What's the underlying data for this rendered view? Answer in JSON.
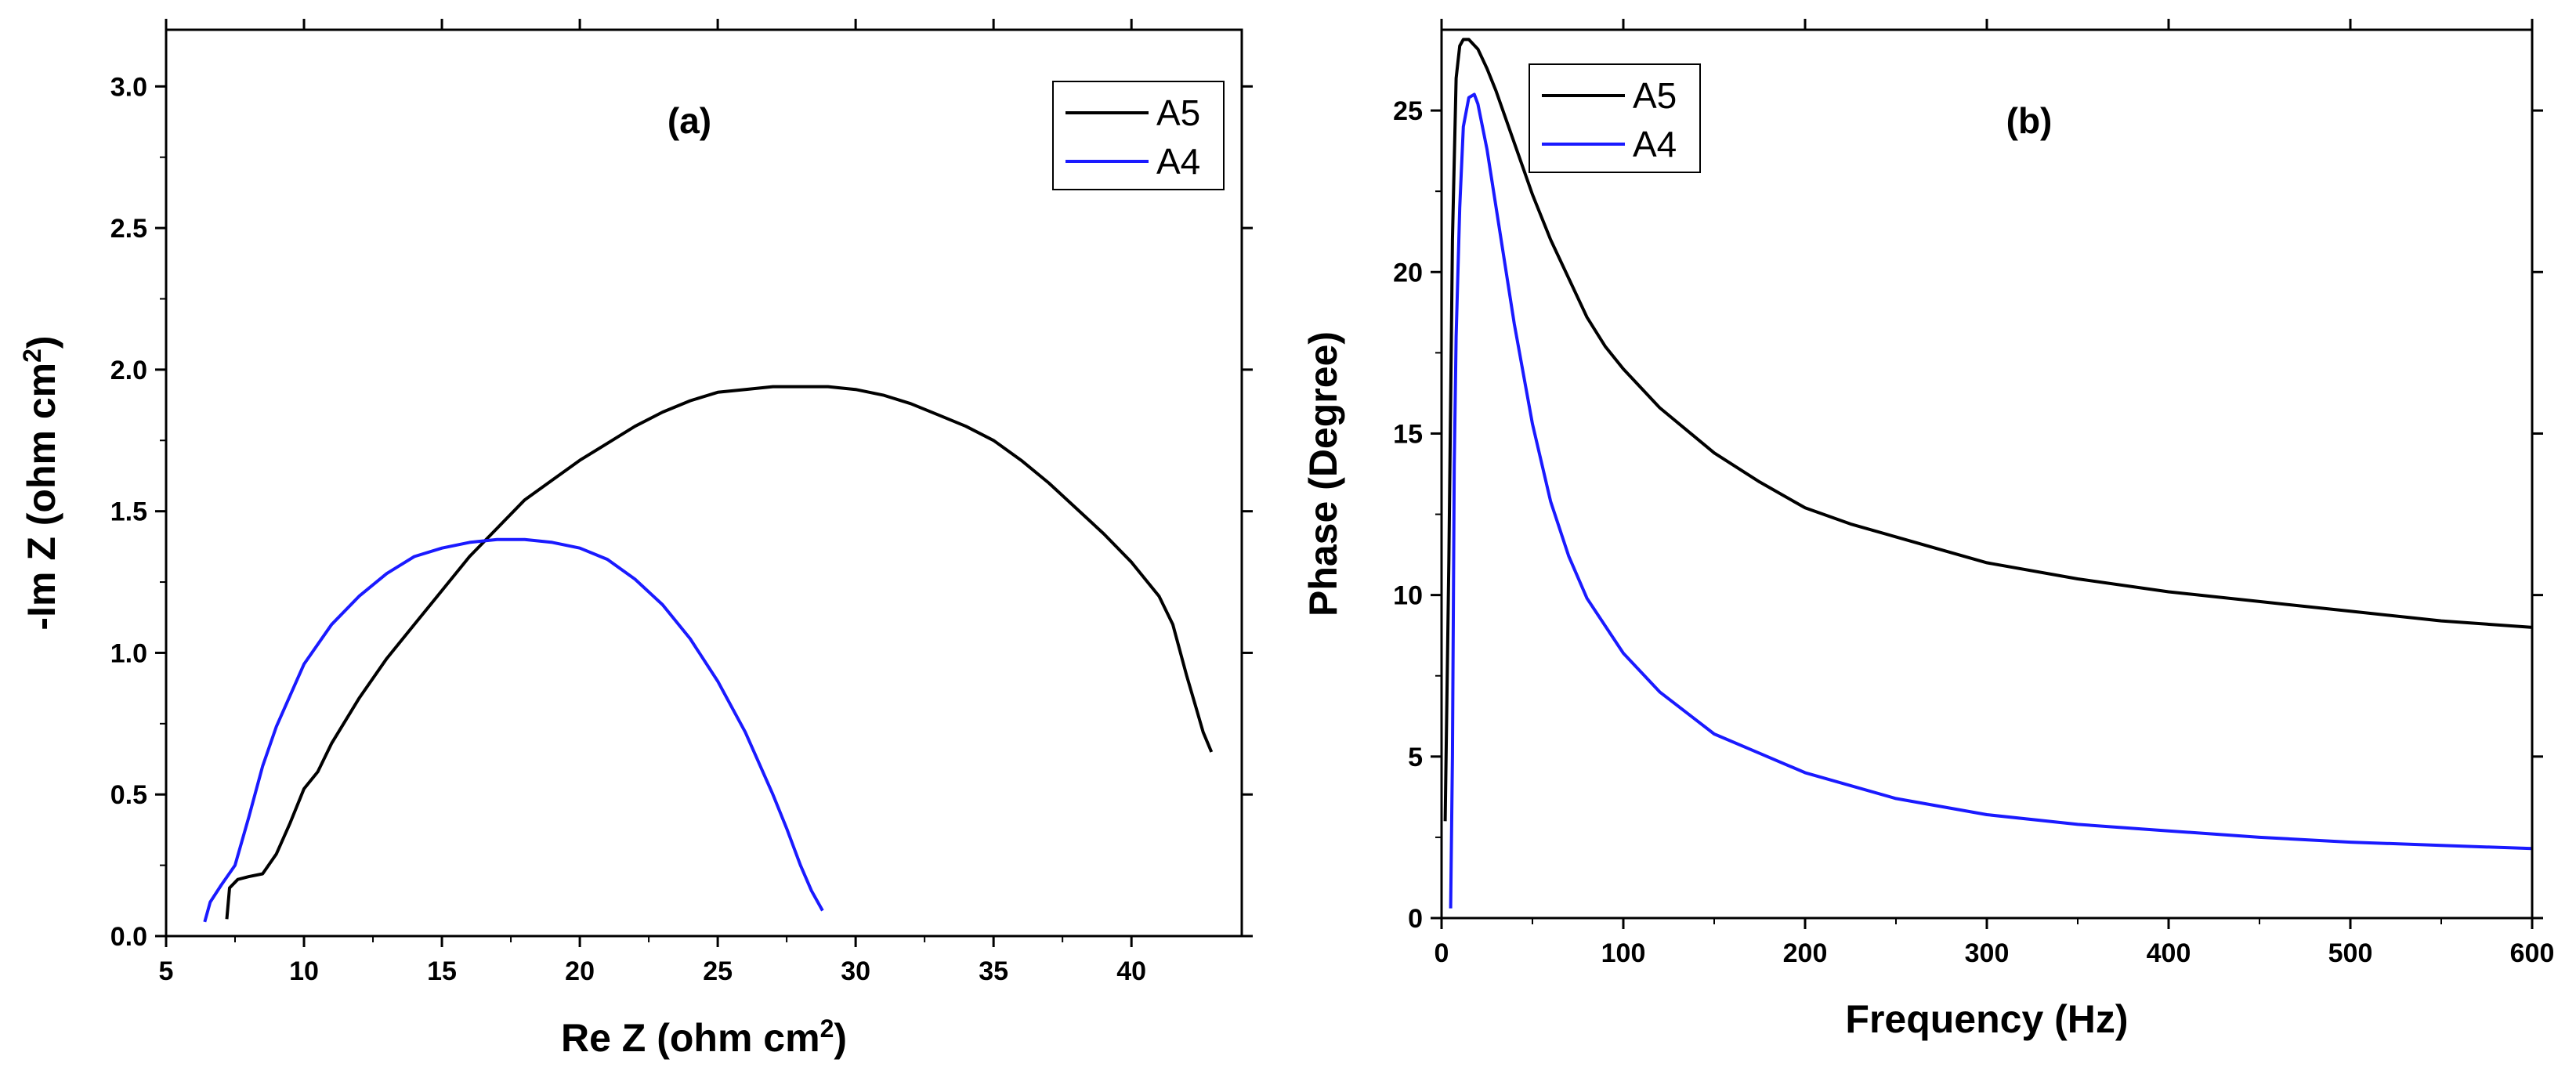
{
  "chart_data": [
    {
      "type": "line",
      "panel_label": "(a)",
      "xlabel": "Re Z (ohm cm",
      "xlabel_sup": "2",
      "xlabel_end": ")",
      "ylabel": "-Im Z (ohm cm",
      "ylabel_sup": "2",
      "ylabel_end": ")",
      "xlim": [
        5,
        44
      ],
      "ylim": [
        0,
        3.2
      ],
      "xticks": [
        5,
        10,
        15,
        20,
        25,
        30,
        35,
        40
      ],
      "xtick_labels": [
        "5",
        "10",
        "15",
        "20",
        "25",
        "30",
        "35",
        "40"
      ],
      "yticks": [
        0,
        0.5,
        1.0,
        1.5,
        2.0,
        2.5,
        3.0
      ],
      "ytick_labels": [
        "0.0",
        "0.5",
        "1.0",
        "1.5",
        "2.0",
        "2.5",
        "3.0"
      ],
      "legend": "top-right",
      "series": [
        {
          "name": "A5",
          "color": "#000000",
          "x": [
            7.2,
            7.3,
            7.6,
            8.0,
            8.5,
            9.0,
            9.5,
            10.0,
            10.5,
            11.0,
            12.0,
            13.0,
            14.0,
            15.0,
            16.0,
            17.0,
            18.0,
            19.0,
            20.0,
            21.0,
            22.0,
            23.0,
            24.0,
            25.0,
            26.0,
            27.0,
            28.0,
            29.0,
            30.0,
            31.0,
            32.0,
            33.0,
            34.0,
            35.0,
            36.0,
            37.0,
            38.0,
            39.0,
            40.0,
            41.0,
            41.5,
            42.0,
            42.3,
            42.6,
            42.9
          ],
          "y": [
            0.06,
            0.17,
            0.2,
            0.21,
            0.22,
            0.29,
            0.4,
            0.52,
            0.58,
            0.68,
            0.84,
            0.98,
            1.1,
            1.22,
            1.34,
            1.44,
            1.54,
            1.61,
            1.68,
            1.74,
            1.8,
            1.85,
            1.89,
            1.92,
            1.93,
            1.94,
            1.94,
            1.94,
            1.93,
            1.91,
            1.88,
            1.84,
            1.8,
            1.75,
            1.68,
            1.6,
            1.51,
            1.42,
            1.32,
            1.2,
            1.1,
            0.92,
            0.82,
            0.72,
            0.65
          ]
        },
        {
          "name": "A4",
          "color": "#1a1aff",
          "x": [
            6.4,
            6.6,
            7.0,
            7.5,
            8.0,
            8.5,
            9.0,
            10.0,
            11.0,
            12.0,
            13.0,
            14.0,
            15.0,
            16.0,
            17.0,
            18.0,
            19.0,
            20.0,
            21.0,
            22.0,
            23.0,
            24.0,
            25.0,
            26.0,
            27.0,
            27.5,
            28.0,
            28.4,
            28.8
          ],
          "y": [
            0.05,
            0.12,
            0.18,
            0.25,
            0.42,
            0.6,
            0.74,
            0.96,
            1.1,
            1.2,
            1.28,
            1.34,
            1.37,
            1.39,
            1.4,
            1.4,
            1.39,
            1.37,
            1.33,
            1.26,
            1.17,
            1.05,
            0.9,
            0.72,
            0.5,
            0.38,
            0.25,
            0.16,
            0.09
          ]
        }
      ]
    },
    {
      "type": "line",
      "panel_label": "(b)",
      "xlabel": "Frequency (Hz)",
      "ylabel": "Phase (Degree)",
      "xlim": [
        0,
        600
      ],
      "ylim": [
        0,
        27.5
      ],
      "xticks": [
        0,
        100,
        200,
        300,
        400,
        500,
        600
      ],
      "xtick_labels": [
        "0",
        "100",
        "200",
        "300",
        "400",
        "500",
        "600"
      ],
      "yticks": [
        0,
        5,
        10,
        15,
        20,
        25
      ],
      "ytick_labels": [
        "0",
        "5",
        "10",
        "15",
        "20",
        "25"
      ],
      "legend": "top-left",
      "series": [
        {
          "name": "A5",
          "color": "#000000",
          "x": [
            2,
            4,
            6,
            8,
            10,
            12,
            15,
            20,
            25,
            30,
            40,
            50,
            60,
            70,
            80,
            90,
            100,
            120,
            150,
            175,
            200,
            225,
            250,
            275,
            300,
            350,
            400,
            450,
            500,
            550,
            600
          ],
          "y": [
            3,
            11,
            21,
            26,
            27,
            27.2,
            27.2,
            26.9,
            26.3,
            25.6,
            24,
            22.4,
            21,
            19.8,
            18.6,
            17.7,
            17,
            15.8,
            14.4,
            13.5,
            12.7,
            12.2,
            11.8,
            11.4,
            11.0,
            10.5,
            10.1,
            9.8,
            9.5,
            9.2,
            9.0
          ]
        },
        {
          "name": "A4",
          "color": "#1a1aff",
          "x": [
            5,
            6,
            7,
            8,
            10,
            12,
            15,
            18,
            20,
            25,
            30,
            40,
            50,
            60,
            70,
            80,
            100,
            120,
            150,
            175,
            200,
            250,
            300,
            350,
            400,
            450,
            500,
            550,
            600
          ],
          "y": [
            0.3,
            5,
            14,
            18,
            22,
            24.5,
            25.4,
            25.5,
            25.2,
            23.8,
            22,
            18.4,
            15.3,
            12.9,
            11.2,
            9.9,
            8.2,
            7.0,
            5.7,
            5.1,
            4.5,
            3.7,
            3.2,
            2.9,
            2.7,
            2.5,
            2.35,
            2.25,
            2.15
          ]
        }
      ]
    }
  ]
}
